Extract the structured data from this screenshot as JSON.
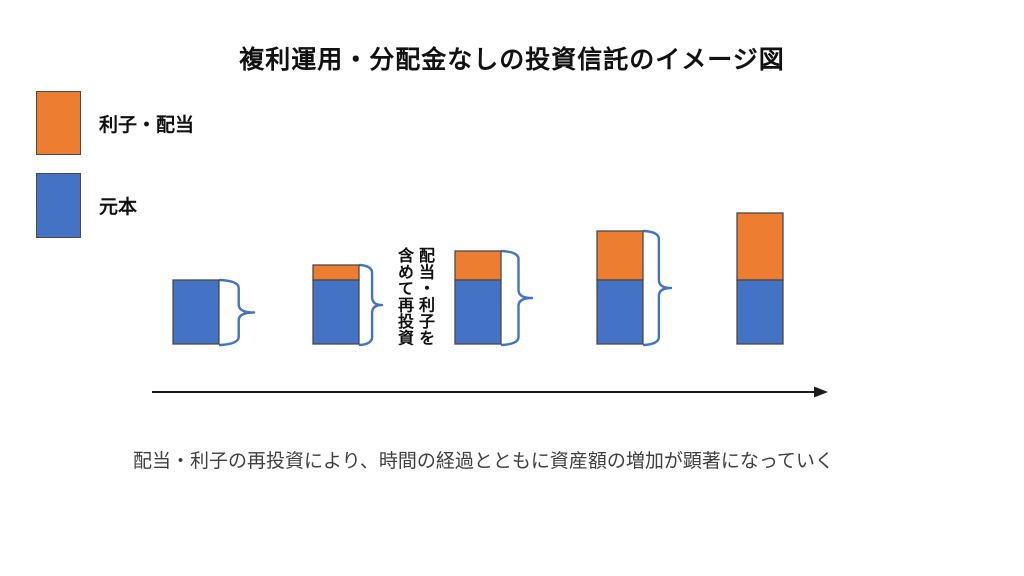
{
  "title": "複利運用・分配金なしの投資信託のイメージ図",
  "legend": {
    "items": [
      {
        "id": "interest",
        "label": "利子・配当",
        "color": "#ED7D31"
      },
      {
        "id": "principal",
        "label": "元本",
        "color": "#4472C4"
      }
    ]
  },
  "colors": {
    "interest": "#ED7D31",
    "principal": "#4472C4",
    "bar_border": "#4a4a4a",
    "brace": "#4472C4",
    "arrow": "#1a1a1a"
  },
  "diagram": {
    "type": "stacked-bar-concept",
    "annotation_vertical": "配当・利子を含めて再投資",
    "bars": [
      {
        "step": 1,
        "principal": 64,
        "interest": 0
      },
      {
        "step": 2,
        "principal": 64,
        "interest": 15
      },
      {
        "step": 3,
        "principal": 64,
        "interest": 29
      },
      {
        "step": 4,
        "principal": 64,
        "interest": 49
      },
      {
        "step": 5,
        "principal": 64,
        "interest": 67
      }
    ],
    "braces_between_steps": true
  },
  "caption": "配当・利子の再投資により、時間の経過とともに資産額の増加が顕著になっていく"
}
